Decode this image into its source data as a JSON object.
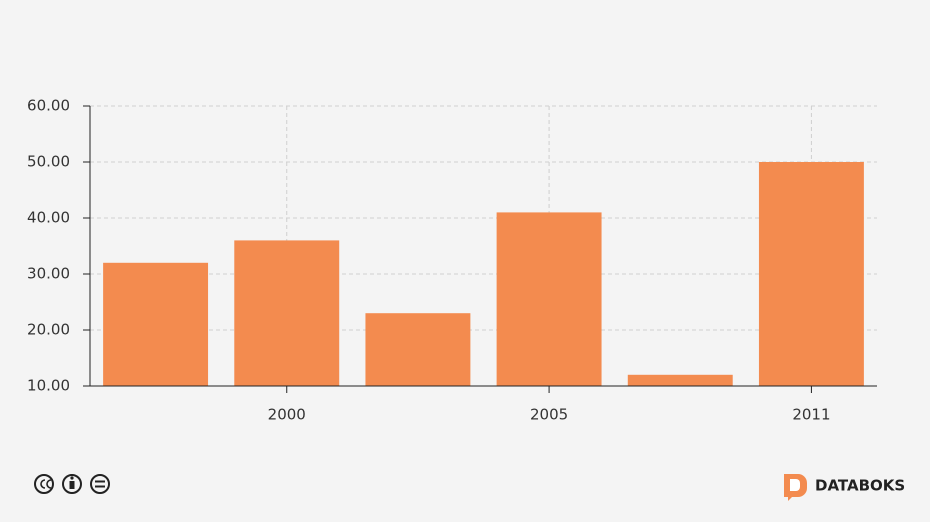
{
  "chart_data": {
    "type": "bar",
    "categories": [
      null,
      "2000",
      null,
      "2005",
      null,
      "2011"
    ],
    "values": [
      32,
      36,
      23,
      41,
      12,
      50
    ],
    "color": "#f38b4f",
    "ylim": [
      10,
      60
    ],
    "yticks": [
      {
        "value": 10,
        "label": "10.00"
      },
      {
        "value": 20,
        "label": "20.00"
      },
      {
        "value": 30,
        "label": "30.00"
      },
      {
        "value": 40,
        "label": "40.00"
      },
      {
        "value": 50,
        "label": "50.00"
      },
      {
        "value": 60,
        "label": "60.00"
      }
    ],
    "grid": true
  },
  "footer": {
    "brand": "DATABOKS"
  }
}
